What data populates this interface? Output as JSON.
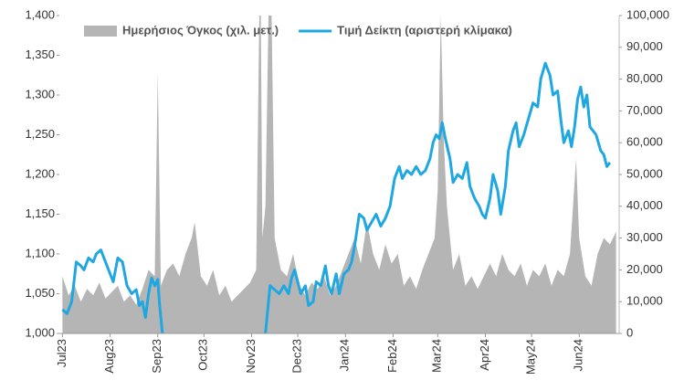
{
  "chart_data": {
    "type": "area-line",
    "legend": "top",
    "xlim": [
      -2,
      362
    ],
    "xticks": [
      {
        "value": 0,
        "label": "Jul23"
      },
      {
        "value": 31,
        "label": "Aug23"
      },
      {
        "value": 62,
        "label": "Sep23"
      },
      {
        "value": 92,
        "label": "Oct23"
      },
      {
        "value": 123,
        "label": "Nov23"
      },
      {
        "value": 153,
        "label": "Dec23"
      },
      {
        "value": 184,
        "label": "Jan24"
      },
      {
        "value": 215,
        "label": "Feb24"
      },
      {
        "value": 244,
        "label": "Mar24"
      },
      {
        "value": 275,
        "label": "Apr24"
      },
      {
        "value": 305,
        "label": "May24"
      },
      {
        "value": 336,
        "label": "Jun24"
      }
    ],
    "ylim": [
      1000,
      1400
    ],
    "yticks": [
      {
        "value": 1000,
        "label": "1,000"
      },
      {
        "value": 1050,
        "label": "1,050"
      },
      {
        "value": 1100,
        "label": "1,100"
      },
      {
        "value": 1150,
        "label": "1,150"
      },
      {
        "value": 1200,
        "label": "1,200"
      },
      {
        "value": 1250,
        "label": "1,250"
      },
      {
        "value": 1300,
        "label": "1,300"
      },
      {
        "value": 1350,
        "label": "1,350"
      },
      {
        "value": 1400,
        "label": "1,400"
      }
    ],
    "y2lim": [
      0,
      100000
    ],
    "y2ticks": [
      0,
      {
        "value": 10000,
        "label": "10,000"
      },
      {
        "value": 20000,
        "label": "20,000"
      },
      {
        "value": 30000,
        "label": "30,000"
      },
      {
        "value": 40000,
        "label": "40,000"
      },
      {
        "value": 50000,
        "label": "50,000"
      },
      {
        "value": 60000,
        "label": "60,000"
      },
      {
        "value": 70000,
        "label": "70,000"
      },
      {
        "value": 80000,
        "label": "80,000"
      },
      {
        "value": 90000,
        "label": "90,000"
      },
      {
        "value": 100000,
        "label": "100,000"
      }
    ],
    "series": [
      {
        "name": "Ημερήσιος Όγκος (χιλ. μετ.)",
        "type": "area",
        "axis": "y2",
        "color": "#b5b5b5",
        "x": [
          0,
          4,
          8,
          12,
          16,
          20,
          24,
          28,
          32,
          36,
          40,
          44,
          48,
          52,
          56,
          60,
          62,
          64,
          68,
          72,
          76,
          80,
          84,
          86,
          90,
          94,
          98,
          102,
          106,
          110,
          114,
          118,
          122,
          126,
          128,
          129,
          130,
          132,
          134,
          136,
          138,
          142,
          146,
          150,
          154,
          158,
          162,
          166,
          170,
          174,
          178,
          182,
          186,
          190,
          194,
          198,
          202,
          206,
          210,
          214,
          218,
          222,
          226,
          230,
          234,
          238,
          242,
          244,
          246,
          248,
          250,
          254,
          258,
          262,
          266,
          270,
          274,
          278,
          282,
          286,
          290,
          294,
          298,
          302,
          306,
          310,
          314,
          318,
          322,
          326,
          330,
          334,
          336,
          340,
          344,
          348,
          352,
          356,
          360
        ],
        "values": [
          18000,
          12000,
          15000,
          10000,
          14000,
          12000,
          16000,
          11000,
          13000,
          15000,
          10000,
          12000,
          9000,
          14000,
          20000,
          18000,
          82000,
          15000,
          20000,
          22000,
          18000,
          25000,
          30000,
          35000,
          18000,
          15000,
          20000,
          12000,
          15000,
          10000,
          12000,
          14000,
          16000,
          20000,
          100000,
          100000,
          30000,
          40000,
          100000,
          100000,
          30000,
          20000,
          18000,
          25000,
          15000,
          12000,
          16000,
          14000,
          18000,
          12000,
          15000,
          20000,
          25000,
          30000,
          22000,
          35000,
          25000,
          20000,
          28000,
          22000,
          25000,
          15000,
          18000,
          14000,
          20000,
          25000,
          30000,
          45000,
          100000,
          60000,
          40000,
          20000,
          25000,
          15000,
          18000,
          14000,
          18000,
          22000,
          18000,
          25000,
          20000,
          18000,
          22000,
          15000,
          20000,
          18000,
          22000,
          15000,
          20000,
          18000,
          25000,
          55000,
          30000,
          18000,
          15000,
          25000,
          30000,
          28000,
          32000
        ]
      },
      {
        "name": "Τιμή Δείκτη (αριστερή κλίμακα)",
        "type": "line",
        "color": "#1ea7e1",
        "x": [
          0,
          3,
          6,
          9,
          12,
          14,
          17,
          20,
          22,
          25,
          28,
          31,
          33,
          36,
          39,
          42,
          45,
          48,
          50,
          52,
          54,
          56,
          58,
          60,
          62,
          63,
          65,
          100,
          132,
          133,
          135,
          138,
          141,
          144,
          147,
          149,
          151,
          153,
          155,
          158,
          160,
          163,
          165,
          168,
          171,
          173,
          175,
          178,
          180,
          183,
          186,
          188,
          190,
          193,
          196,
          198,
          201,
          204,
          207,
          210,
          213,
          216,
          219,
          221,
          224,
          227,
          230,
          233,
          236,
          239,
          241,
          243,
          245,
          247,
          249,
          252,
          254,
          257,
          260,
          263,
          265,
          268,
          271,
          273,
          275,
          278,
          280,
          283,
          285,
          288,
          290,
          293,
          295,
          297,
          300,
          303,
          306,
          309,
          311,
          314,
          317,
          319,
          322,
          324,
          326,
          329,
          331,
          333,
          335,
          337,
          339,
          341,
          343,
          345,
          347,
          350,
          352,
          354,
          356
        ],
        "values": [
          1030,
          1025,
          1040,
          1090,
          1085,
          1080,
          1095,
          1090,
          1100,
          1105,
          1090,
          1075,
          1065,
          1095,
          1090,
          1060,
          1050,
          1055,
          1035,
          1040,
          1020,
          1050,
          1070,
          1060,
          1068,
          1040,
          1000,
          null,
          1000,
          1020,
          1060,
          1055,
          1050,
          1060,
          1050,
          1070,
          1080,
          1065,
          1050,
          1060,
          1035,
          1040,
          1065,
          1060,
          1085,
          1060,
          1050,
          1075,
          1050,
          1075,
          1080,
          1090,
          1110,
          1150,
          1145,
          1130,
          1140,
          1150,
          1135,
          1145,
          1160,
          1195,
          1210,
          1195,
          1205,
          1200,
          1210,
          1200,
          1205,
          1220,
          1240,
          1250,
          1245,
          1265,
          1245,
          1220,
          1190,
          1200,
          1195,
          1215,
          1185,
          1170,
          1160,
          1150,
          1145,
          1170,
          1200,
          1180,
          1150,
          1185,
          1230,
          1255,
          1265,
          1235,
          1250,
          1270,
          1290,
          1285,
          1320,
          1340,
          1325,
          1300,
          1305,
          1270,
          1240,
          1255,
          1235,
          1260,
          1295,
          1310,
          1285,
          1300,
          1260,
          1255,
          1250,
          1230,
          1225,
          1210,
          1215
        ]
      }
    ]
  }
}
